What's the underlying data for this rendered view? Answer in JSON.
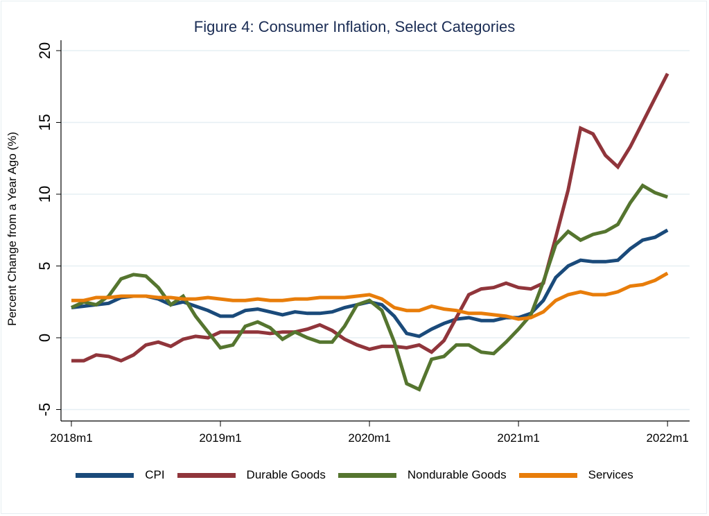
{
  "chart_data": {
    "type": "line",
    "title": "Figure 4: Consumer Inflation, Select Categories",
    "xlabel": "",
    "ylabel": "Percent Change from a Year Ago (%)",
    "ylim": [
      -5,
      20
    ],
    "yticks": [
      -5,
      0,
      5,
      10,
      15,
      20
    ],
    "ytick_labels": [
      "-5",
      "0",
      "5",
      "10",
      "15",
      "20"
    ],
    "xticks": [
      0,
      12,
      24,
      36,
      48
    ],
    "xtick_labels": [
      "2018m1",
      "2019m1",
      "2020m1",
      "2021m1",
      "2022m1"
    ],
    "x_start": "2018m1",
    "x_end": "2022m1",
    "grid": true,
    "legend_position": "bottom",
    "series": [
      {
        "name": "CPI",
        "color": "#1a4a7a",
        "values": [
          2.1,
          2.2,
          2.3,
          2.4,
          2.8,
          2.9,
          2.9,
          2.7,
          2.3,
          2.5,
          2.2,
          1.9,
          1.5,
          1.5,
          1.9,
          2.0,
          1.8,
          1.6,
          1.8,
          1.7,
          1.7,
          1.8,
          2.1,
          2.3,
          2.5,
          2.3,
          1.5,
          0.3,
          0.1,
          0.6,
          1.0,
          1.3,
          1.4,
          1.2,
          1.2,
          1.4,
          1.4,
          1.7,
          2.6,
          4.2,
          5.0,
          5.4,
          5.3,
          5.3,
          5.4,
          6.2,
          6.8,
          7.0,
          7.5
        ]
      },
      {
        "name": "Durable Goods",
        "color": "#90353b",
        "values": [
          -1.6,
          -1.6,
          -1.2,
          -1.3,
          -1.6,
          -1.2,
          -0.5,
          -0.3,
          -0.6,
          -0.1,
          0.1,
          0.0,
          0.4,
          0.4,
          0.4,
          0.4,
          0.3,
          0.4,
          0.4,
          0.6,
          0.9,
          0.5,
          -0.1,
          -0.5,
          -0.8,
          -0.6,
          -0.6,
          -0.7,
          -0.5,
          -1.0,
          -0.2,
          1.4,
          3.0,
          3.4,
          3.5,
          3.8,
          3.5,
          3.4,
          3.8,
          7.0,
          10.3,
          14.6,
          14.2,
          12.7,
          11.9,
          13.3,
          15.0,
          16.7,
          18.4
        ]
      },
      {
        "name": "Nondurable Goods",
        "color": "#55752f",
        "values": [
          2.1,
          2.5,
          2.3,
          2.9,
          4.1,
          4.4,
          4.3,
          3.5,
          2.3,
          2.9,
          1.5,
          0.4,
          -0.7,
          -0.5,
          0.8,
          1.1,
          0.7,
          -0.1,
          0.4,
          0.0,
          -0.3,
          -0.3,
          0.8,
          2.3,
          2.6,
          1.9,
          -0.3,
          -3.2,
          -3.6,
          -1.5,
          -1.3,
          -0.5,
          -0.5,
          -1.0,
          -1.1,
          -0.3,
          0.6,
          1.6,
          3.9,
          6.5,
          7.4,
          6.8,
          7.2,
          7.4,
          7.9,
          9.4,
          10.6,
          10.1,
          9.8
        ]
      },
      {
        "name": "Services",
        "color": "#e87d0a",
        "values": [
          2.6,
          2.6,
          2.8,
          2.8,
          2.9,
          2.9,
          2.9,
          2.8,
          2.8,
          2.7,
          2.7,
          2.8,
          2.7,
          2.6,
          2.6,
          2.7,
          2.6,
          2.6,
          2.7,
          2.7,
          2.8,
          2.8,
          2.8,
          2.9,
          3.0,
          2.7,
          2.1,
          1.9,
          1.9,
          2.2,
          2.0,
          1.9,
          1.7,
          1.7,
          1.6,
          1.5,
          1.3,
          1.4,
          1.8,
          2.6,
          3.0,
          3.2,
          3.0,
          3.0,
          3.2,
          3.6,
          3.7,
          4.0,
          4.5
        ]
      }
    ]
  }
}
